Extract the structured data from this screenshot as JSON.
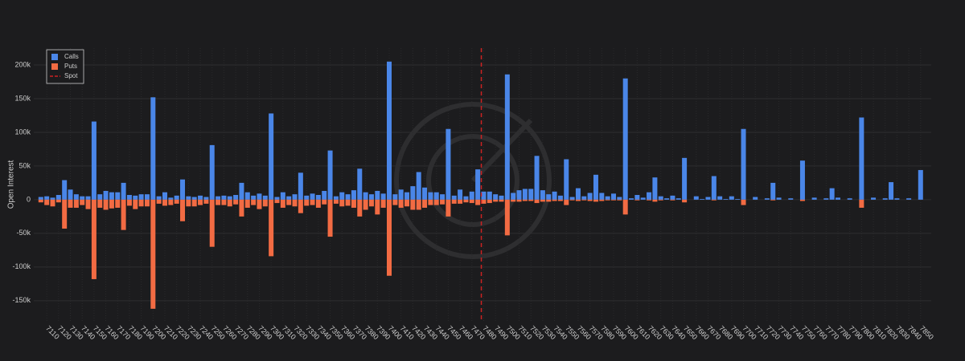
{
  "chart_data": {
    "type": "bar",
    "y_label": "Open Interest",
    "x": [
      7105,
      7110,
      7115,
      7120,
      7125,
      7130,
      7135,
      7140,
      7145,
      7150,
      7155,
      7160,
      7165,
      7170,
      7175,
      7180,
      7185,
      7190,
      7195,
      7200,
      7205,
      7210,
      7215,
      7220,
      7225,
      7230,
      7235,
      7240,
      7245,
      7250,
      7255,
      7260,
      7265,
      7270,
      7275,
      7280,
      7285,
      7290,
      7295,
      7300,
      7305,
      7310,
      7315,
      7320,
      7325,
      7330,
      7335,
      7340,
      7345,
      7350,
      7355,
      7360,
      7365,
      7370,
      7375,
      7380,
      7385,
      7390,
      7395,
      7400,
      7405,
      7410,
      7415,
      7420,
      7425,
      7430,
      7435,
      7440,
      7445,
      7450,
      7455,
      7460,
      7465,
      7470,
      7475,
      7480,
      7485,
      7490,
      7495,
      7500,
      7505,
      7510,
      7515,
      7520,
      7525,
      7530,
      7535,
      7540,
      7545,
      7550,
      7555,
      7560,
      7565,
      7570,
      7575,
      7580,
      7585,
      7590,
      7595,
      7600,
      7605,
      7610,
      7615,
      7620,
      7625,
      7630,
      7635,
      7640,
      7645,
      7650,
      7655,
      7660,
      7665,
      7670,
      7675,
      7680,
      7685,
      7690,
      7695,
      7700,
      7705,
      7710,
      7715,
      7720,
      7725,
      7730,
      7735,
      7740,
      7745,
      7750,
      7755,
      7760,
      7765,
      7770,
      7775,
      7780,
      7785,
      7790,
      7795,
      7800,
      7805,
      7810,
      7815,
      7820,
      7825,
      7830,
      7835,
      7840,
      7845,
      7850
    ],
    "series": [
      {
        "name": "Calls",
        "color": "#4a86e8",
        "values": [
          4000,
          5000,
          3000,
          7000,
          29000,
          15000,
          8000,
          5000,
          5000,
          116000,
          8000,
          13000,
          11000,
          11000,
          25000,
          7000,
          6000,
          8000,
          8000,
          152000,
          5000,
          11000,
          3000,
          6000,
          30000,
          5000,
          4000,
          6000,
          4000,
          81000,
          5000,
          6000,
          5000,
          7000,
          25000,
          11000,
          6000,
          9000,
          6000,
          128000,
          4000,
          11000,
          5000,
          8000,
          40000,
          6000,
          9000,
          7000,
          13000,
          73000,
          5000,
          11000,
          8000,
          14000,
          46000,
          11000,
          8000,
          13000,
          9000,
          205000,
          8000,
          15000,
          11000,
          20000,
          41000,
          18000,
          11000,
          11000,
          8000,
          105000,
          6000,
          15000,
          5000,
          12000,
          45000,
          12000,
          12000,
          8000,
          6000,
          186000,
          10000,
          14000,
          16000,
          16000,
          65000,
          14000,
          8000,
          12000,
          6000,
          60000,
          4000,
          17000,
          5000,
          10000,
          37000,
          10000,
          5000,
          9000,
          4000,
          180000,
          2000,
          7000,
          3000,
          11000,
          33000,
          5000,
          2000,
          6000,
          2000,
          62000,
          0,
          5000,
          1000,
          4000,
          35000,
          5000,
          1000,
          5000,
          1000,
          105000,
          0,
          4000,
          0,
          2000,
          25000,
          3000,
          0,
          2000,
          0,
          58000,
          0,
          3000,
          0,
          2000,
          17000,
          3000,
          0,
          2000,
          0,
          122000,
          0,
          3000,
          0,
          2000,
          26000,
          2000,
          0,
          2000,
          0,
          44000
        ]
      },
      {
        "name": "Puts",
        "color": "#f26b43",
        "values": [
          -4000,
          -8000,
          -10000,
          -4000,
          -43000,
          -12000,
          -12000,
          -8000,
          -14000,
          -118000,
          -12000,
          -15000,
          -13000,
          -12000,
          -45000,
          -9000,
          -14000,
          -10000,
          -10000,
          -162000,
          -6000,
          -9000,
          -8000,
          -6000,
          -32000,
          -10000,
          -10000,
          -8000,
          -6000,
          -70000,
          -8000,
          -8000,
          -10000,
          -7000,
          -25000,
          -12000,
          -8000,
          -14000,
          -10000,
          -84000,
          -5000,
          -12000,
          -8000,
          -10000,
          -20000,
          -9000,
          -8000,
          -12000,
          -7000,
          -55000,
          -6000,
          -10000,
          -9000,
          -12000,
          -25000,
          -15000,
          -10000,
          -22000,
          -12000,
          -113000,
          -8000,
          -12000,
          -10000,
          -15000,
          -15000,
          -12000,
          -8000,
          -8000,
          -7000,
          -25000,
          -6000,
          -6000,
          -4000,
          -5000,
          -8000,
          -6000,
          -5000,
          -3000,
          -3000,
          -53000,
          -3000,
          -3000,
          -2000,
          -2000,
          -5000,
          -3000,
          -3000,
          -2000,
          -2000,
          -8000,
          -1000,
          -2000,
          -1000,
          -2000,
          -3000,
          -2000,
          -1000,
          -1000,
          -1000,
          -22000,
          0,
          -1000,
          0,
          -1000,
          -3000,
          -1000,
          0,
          -1000,
          0,
          -4000,
          0,
          0,
          0,
          0,
          -1000,
          0,
          0,
          0,
          0,
          -8000,
          0,
          0,
          0,
          0,
          -1000,
          0,
          0,
          0,
          0,
          -2000,
          0,
          0,
          0,
          0,
          0,
          0,
          0,
          0,
          0,
          -12000,
          0,
          0,
          0,
          0,
          0,
          0,
          0,
          0,
          0,
          0
        ]
      }
    ],
    "spot": {
      "name": "Spot",
      "value": 7478,
      "color": "#cc2222"
    },
    "xlim": [
      7099,
      7859
    ],
    "xticks": [
      7110,
      7120,
      7130,
      7140,
      7150,
      7160,
      7170,
      7180,
      7190,
      7200,
      7210,
      7220,
      7230,
      7240,
      7250,
      7260,
      7270,
      7280,
      7290,
      7300,
      7310,
      7320,
      7330,
      7340,
      7350,
      7360,
      7370,
      7380,
      7390,
      7400,
      7410,
      7420,
      7430,
      7440,
      7450,
      7460,
      7470,
      7480,
      7490,
      7500,
      7510,
      7520,
      7530,
      7540,
      7550,
      7560,
      7570,
      7580,
      7590,
      7600,
      7610,
      7620,
      7630,
      7640,
      7650,
      7660,
      7670,
      7680,
      7690,
      7700,
      7710,
      7720,
      7730,
      7740,
      7750,
      7760,
      7770,
      7780,
      7790,
      7800,
      7810,
      7820,
      7830,
      7840,
      7850
    ],
    "ylim": [
      -180000,
      225000
    ],
    "yticks": [
      {
        "value": -150000,
        "label": "-150k"
      },
      {
        "value": -100000,
        "label": "-100k"
      },
      {
        "value": -50000,
        "label": "-50k"
      },
      0,
      {
        "value": 50000,
        "label": "50k"
      },
      {
        "value": 100000,
        "label": "100k"
      },
      {
        "value": 150000,
        "label": "150k"
      },
      {
        "value": 200000,
        "label": "200k"
      }
    ],
    "grid": true,
    "legend": "upper left"
  }
}
